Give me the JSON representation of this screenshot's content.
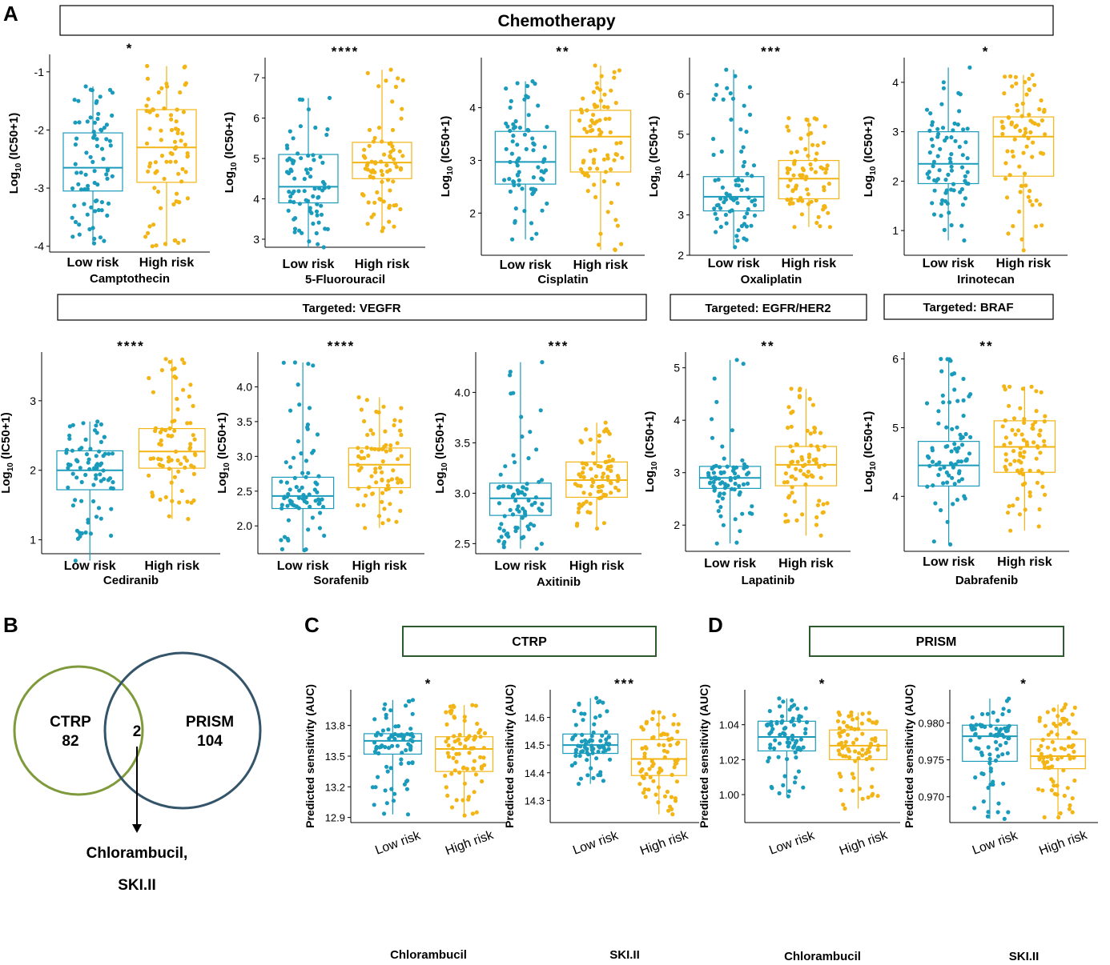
{
  "panel_labels": {
    "A": "A",
    "B": "B",
    "C": "C",
    "D": "D"
  },
  "group_labels": {
    "low": "Low risk",
    "high": "High risk"
  },
  "colors": {
    "low": "#1a9bbb",
    "high": "#f2b515",
    "venn_ctrp": "#7f9a3b",
    "venn_prism": "#34546a",
    "panel_box": "#2f5a2f"
  },
  "section_titles": {
    "chemotherapy": "Chemotherapy",
    "vegfr": "Targeted: VEGFR",
    "egfr": "Targeted: EGFR/HER2",
    "braf": "Targeted: BRAF",
    "ctrp": "CTRP",
    "prism": "PRISM"
  },
  "axis_labels": {
    "ic50_prefix": "Log",
    "ic50_sub": "10",
    "ic50_suffix": " (IC50+1)",
    "auc": "Predicted sensitivity (AUC)"
  },
  "venn": {
    "left_name": "CTRP",
    "left_count": "82",
    "overlap_count": "2",
    "right_name": "PRISM",
    "right_count": "104",
    "result_line1": "Chlorambucil,",
    "result_line2": "SKI.II"
  },
  "chart_data": [
    {
      "type": "box",
      "drug": "Camptothecin",
      "sig": "*",
      "ylabel": "Log10 (IC50+1)",
      "ylim": [
        -4.1,
        -0.7
      ],
      "ticks": [
        -4,
        -3,
        -2,
        -1
      ],
      "tick_labels": [
        "-4",
        "-3",
        "-2",
        "-1"
      ],
      "low": {
        "min": -3.95,
        "q1": -3.05,
        "median": -2.65,
        "q3": -2.05,
        "max": -1.25
      },
      "high": {
        "min": -4.0,
        "q1": -2.9,
        "median": -2.3,
        "q3": -1.65,
        "max": -0.9
      }
    },
    {
      "type": "box",
      "drug": "5-Fluorouracil",
      "sig": "****",
      "ylabel": "Log10 (IC50+1)",
      "ylim": [
        2.8,
        7.5
      ],
      "ticks": [
        3,
        4,
        5,
        6,
        7
      ],
      "tick_labels": [
        "3",
        "4",
        "5",
        "6",
        "7"
      ],
      "low": {
        "min": 2.8,
        "q1": 3.9,
        "median": 4.3,
        "q3": 5.1,
        "max": 6.5
      },
      "high": {
        "min": 3.2,
        "q1": 4.5,
        "median": 4.9,
        "q3": 5.4,
        "max": 7.2
      }
    },
    {
      "type": "box",
      "drug": "Cisplatin",
      "sig": "**",
      "ylabel": "Log10 (IC50+1)",
      "ylim": [
        1.2,
        4.95
      ],
      "ticks": [
        2,
        3,
        4
      ],
      "tick_labels": [
        "2",
        "3",
        "4"
      ],
      "low": {
        "min": 1.5,
        "q1": 2.55,
        "median": 2.97,
        "q3": 3.55,
        "max": 4.5
      },
      "high": {
        "min": 1.3,
        "q1": 2.78,
        "median": 3.45,
        "q3": 3.95,
        "max": 4.8
      }
    },
    {
      "type": "box",
      "drug": "Oxaliplatin",
      "sig": "***",
      "ylabel": "Log10 (IC50+1)",
      "ylim": [
        2.0,
        6.9
      ],
      "ticks": [
        2,
        3,
        4,
        5,
        6
      ],
      "tick_labels": [
        "2",
        "3",
        "4",
        "5",
        "6"
      ],
      "low": {
        "min": 2.2,
        "q1": 3.1,
        "median": 3.45,
        "q3": 3.95,
        "max": 6.6
      },
      "high": {
        "min": 2.7,
        "q1": 3.4,
        "median": 3.9,
        "q3": 4.35,
        "max": 5.4
      }
    },
    {
      "type": "box",
      "drug": "Irinotecan",
      "sig": "*",
      "ylabel": "Log10 (IC50+1)",
      "ylim": [
        0.5,
        4.5
      ],
      "ticks": [
        1,
        2,
        3,
        4
      ],
      "tick_labels": [
        "1",
        "2",
        "3",
        "4"
      ],
      "low": {
        "min": 0.8,
        "q1": 1.95,
        "median": 2.35,
        "q3": 3.0,
        "max": 4.3
      },
      "high": {
        "min": 0.6,
        "q1": 2.1,
        "median": 2.9,
        "q3": 3.3,
        "max": 4.15
      }
    },
    {
      "type": "box",
      "drug": "Cediranib",
      "sig": "****",
      "ylabel": "Log10 (IC50+1)",
      "ylim": [
        0.8,
        3.7
      ],
      "ticks": [
        1,
        2,
        3
      ],
      "tick_labels": [
        "1",
        "2",
        "3"
      ],
      "low": {
        "min": 0.7,
        "q1": 1.72,
        "median": 2.0,
        "q3": 2.28,
        "max": 2.7
      },
      "high": {
        "min": 1.3,
        "q1": 2.03,
        "median": 2.27,
        "q3": 2.6,
        "max": 3.6
      }
    },
    {
      "type": "box",
      "drug": "Sorafenib",
      "sig": "****",
      "ylabel": "Log10 (IC50+1)",
      "ylim": [
        1.6,
        4.5
      ],
      "ticks": [
        2.0,
        2.5,
        3.0,
        3.5,
        4.0
      ],
      "tick_labels": [
        "2.0",
        "2.5",
        "3.0",
        "3.5",
        "4.0"
      ],
      "low": {
        "min": 1.65,
        "q1": 2.25,
        "median": 2.43,
        "q3": 2.7,
        "max": 4.35
      },
      "high": {
        "min": 1.97,
        "q1": 2.55,
        "median": 2.88,
        "q3": 3.12,
        "max": 3.85
      }
    },
    {
      "type": "box",
      "drug": "Axitinib",
      "sig": "***",
      "ylabel": "Log10 (IC50+1)",
      "ylim": [
        2.4,
        4.4
      ],
      "ticks": [
        2.5,
        3.0,
        3.5,
        4.0
      ],
      "tick_labels": [
        "2.5",
        "3.0",
        "3.5",
        "4.0"
      ],
      "low": {
        "min": 2.45,
        "q1": 2.78,
        "median": 2.95,
        "q3": 3.1,
        "max": 4.3
      },
      "high": {
        "min": 2.65,
        "q1": 2.96,
        "median": 3.13,
        "q3": 3.31,
        "max": 3.7
      }
    },
    {
      "type": "box",
      "drug": "Lapatinib",
      "sig": "**",
      "ylabel": "Log10 (IC50+1)",
      "ylim": [
        1.5,
        5.3
      ],
      "ticks": [
        2,
        3,
        4,
        5
      ],
      "tick_labels": [
        "2",
        "3",
        "4",
        "5"
      ],
      "low": {
        "min": 1.65,
        "q1": 2.7,
        "median": 2.9,
        "q3": 3.12,
        "max": 5.15
      },
      "high": {
        "min": 1.8,
        "q1": 2.75,
        "median": 3.15,
        "q3": 3.5,
        "max": 4.6
      }
    },
    {
      "type": "box",
      "drug": "Dabrafenib",
      "sig": "**",
      "ylabel": "Log10 (IC50+1)",
      "ylim": [
        3.2,
        6.1
      ],
      "ticks": [
        4,
        5,
        6
      ],
      "tick_labels": [
        "4",
        "5",
        "6"
      ],
      "low": {
        "min": 3.3,
        "q1": 4.15,
        "median": 4.45,
        "q3": 4.8,
        "max": 6.0
      },
      "high": {
        "min": 3.5,
        "q1": 4.35,
        "median": 4.72,
        "q3": 5.1,
        "max": 5.6
      }
    },
    {
      "type": "box",
      "panel": "C",
      "drug": "Chlorambucil",
      "sig": "*",
      "ylabel": "Predicted sensitivity (AUC)",
      "ylim": [
        12.85,
        14.15
      ],
      "ticks": [
        12.9,
        13.2,
        13.5,
        13.8
      ],
      "tick_labels": [
        "12.9",
        "13.2",
        "13.5",
        "13.8"
      ],
      "low": {
        "min": 12.93,
        "q1": 13.52,
        "median": 13.65,
        "q3": 13.72,
        "max": 14.05
      },
      "high": {
        "min": 12.92,
        "q1": 13.35,
        "median": 13.57,
        "q3": 13.69,
        "max": 14.0
      }
    },
    {
      "type": "box",
      "panel": "C",
      "drug": "SKI.II",
      "sig": "***",
      "ylabel": "Predicted sensitivity (AUC)",
      "ylim": [
        14.22,
        14.7
      ],
      "ticks": [
        14.3,
        14.4,
        14.5,
        14.6
      ],
      "tick_labels": [
        "14.3",
        "14.4",
        "14.5",
        "14.6"
      ],
      "low": {
        "min": 14.36,
        "q1": 14.47,
        "median": 14.5,
        "q3": 14.54,
        "max": 14.67
      },
      "high": {
        "min": 14.25,
        "q1": 14.39,
        "median": 14.45,
        "q3": 14.52,
        "max": 14.62
      }
    },
    {
      "type": "box",
      "panel": "D",
      "drug": "Chlorambucil",
      "sig": "*",
      "ylabel": "Predicted sensitivity (AUC)",
      "ylim": [
        0.984,
        1.06
      ],
      "ticks": [
        1.0,
        1.02,
        1.04
      ],
      "tick_labels": [
        "1.00",
        "1.02",
        "1.04"
      ],
      "low": {
        "min": 0.999,
        "q1": 1.025,
        "median": 1.033,
        "q3": 1.042,
        "max": 1.055
      },
      "high": {
        "min": 0.992,
        "q1": 1.02,
        "median": 1.028,
        "q3": 1.037,
        "max": 1.047
      }
    },
    {
      "type": "box",
      "panel": "D",
      "drug": "SKI.II",
      "sig": "*",
      "ylabel": "Predicted sensitivity (AUC)",
      "ylim": [
        0.9665,
        0.9845
      ],
      "ticks": [
        0.97,
        0.975,
        0.98
      ],
      "tick_labels": [
        "0.970",
        "0.975",
        "0.980"
      ],
      "low": {
        "min": 0.967,
        "q1": 0.9748,
        "median": 0.9782,
        "q3": 0.9797,
        "max": 0.9833
      },
      "high": {
        "min": 0.9672,
        "q1": 0.9738,
        "median": 0.9755,
        "q3": 0.9778,
        "max": 0.9825
      }
    }
  ]
}
